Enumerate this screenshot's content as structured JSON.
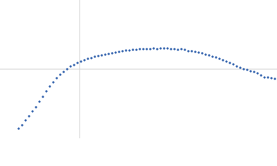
{
  "chart_data": {
    "type": "scatter",
    "color": "#3a68b0",
    "xlim": [
      -115,
      285
    ],
    "ylim": [
      -100,
      100
    ],
    "reference_lines": {
      "x": [
        0
      ],
      "y": [
        0
      ]
    },
    "x": [
      -88,
      -83,
      -78,
      -73,
      -68,
      -63,
      -58,
      -53,
      -48,
      -43,
      -38,
      -33,
      -28,
      -23,
      -18,
      -13,
      -8,
      -3,
      2,
      7,
      12,
      17,
      22,
      27,
      32,
      37,
      42,
      47,
      52,
      57,
      62,
      67,
      72,
      77,
      82,
      87,
      92,
      97,
      102,
      107,
      112,
      117,
      122,
      127,
      132,
      137,
      142,
      147,
      152,
      157,
      162,
      167,
      172,
      177,
      182,
      187,
      192,
      197,
      202,
      207,
      212,
      217,
      222,
      227,
      232,
      237,
      242,
      247,
      252,
      257,
      262,
      267,
      272,
      277,
      282
    ],
    "y": [
      -86,
      -81,
      -74,
      -68,
      -61,
      -55,
      -47,
      -40,
      -32,
      -25,
      -19,
      -13,
      -8,
      -4,
      0,
      4,
      6,
      9,
      11,
      13,
      15,
      16,
      18,
      19,
      20,
      21,
      22,
      23,
      24,
      25,
      26,
      27,
      27,
      28,
      28,
      29,
      29,
      29,
      29,
      30,
      29,
      30,
      30,
      30,
      29,
      29,
      28,
      29,
      28,
      26,
      26,
      25,
      24,
      23,
      21,
      20,
      18,
      17,
      15,
      13,
      11,
      9,
      7,
      4,
      2,
      0,
      -1,
      -3,
      -4,
      -6,
      -9,
      -12,
      -12,
      -13,
      -14
    ]
  }
}
